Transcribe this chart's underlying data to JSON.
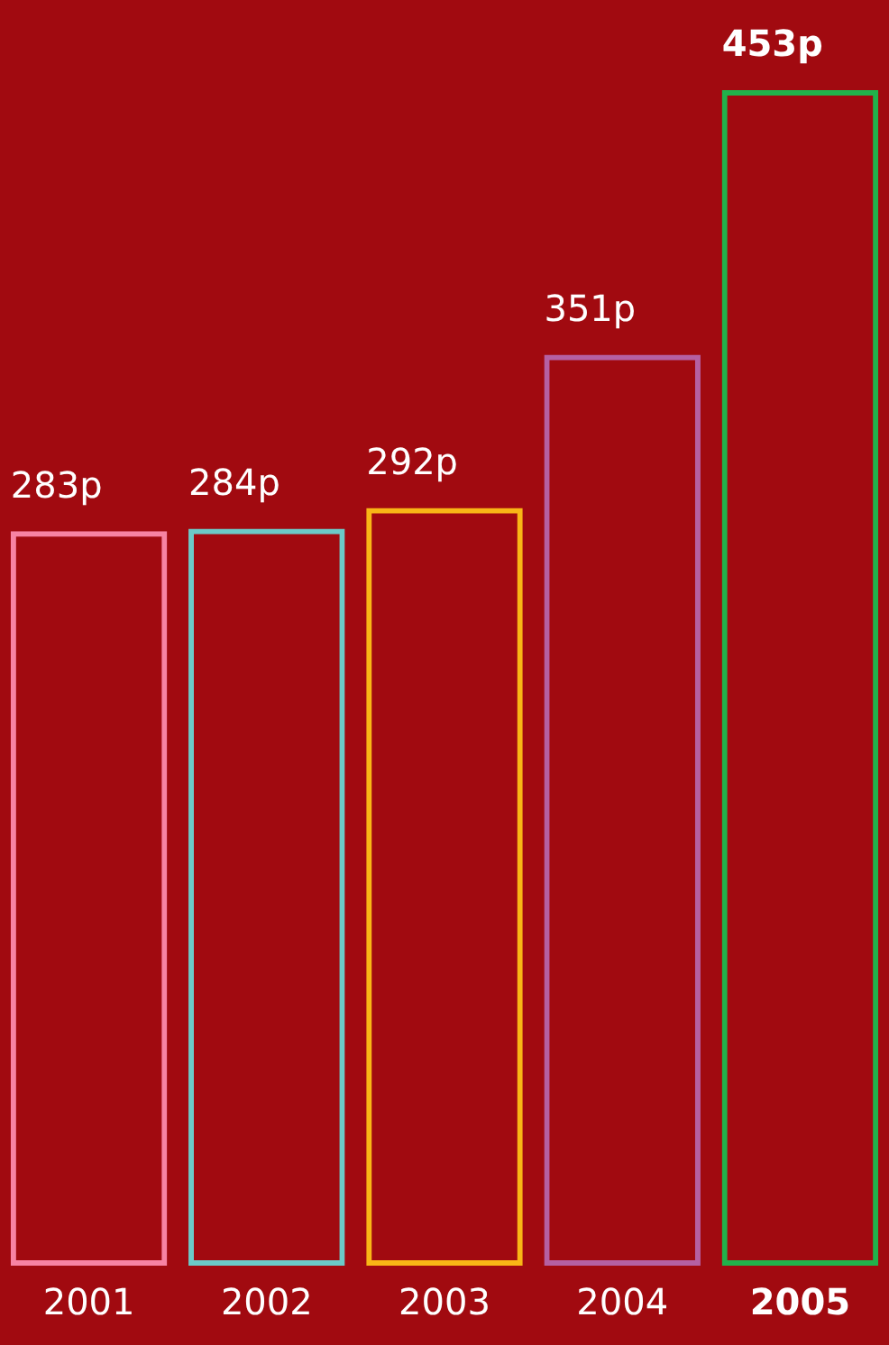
{
  "chart_data": {
    "type": "bar",
    "categories": [
      "2001",
      "2002",
      "2003",
      "2004",
      "2005"
    ],
    "values": [
      283,
      284,
      292,
      351,
      453
    ],
    "colors": [
      "#f783a3",
      "#6ccac8",
      "#f9b616",
      "#b560a2",
      "#21b24b"
    ],
    "value_labels": [
      "283p",
      "284p",
      "292p",
      "351p",
      "453p"
    ],
    "grid": false,
    "legend": false,
    "tick_labels": "x"
  }
}
